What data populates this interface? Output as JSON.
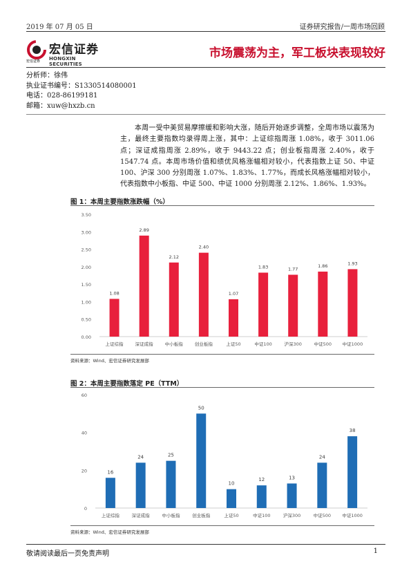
{
  "header": {
    "date": "2019 年 07 月 05 日",
    "series": "证券研究报告/一周市场回顾"
  },
  "logo": {
    "cn": "宏信证券",
    "sub_cn": "宏信证券",
    "en": "HONGXIN SECURITIES"
  },
  "title": "市场震荡为主，军工板块表现较好",
  "analyst": {
    "name_line": "分析师：徐伟",
    "cert_line": "执业证书编号：S1330514080001",
    "phone_line": "电话：028-86199181",
    "email_line": "邮箱：xuw@hxzb.cn"
  },
  "body": "本周一受中美贸易摩擦缓和影响大涨，随后开始逐步调整，全周市场以震荡为主，最终主要指数均录得周上涨，其中：上证综指周涨 1.08%，收于 3011.06 点；深证成指周涨 2.89%，收于 9443.22 点；创业板指周涨 2.40%，收于 1547.74 点。本周市场价值和绩优风格涨幅相对较小，代表指数上证 50、中证 100、沪深 300 分别周涨 1.07%、1.83%、1.77%，而成长风格涨幅相对较小，代表指数中小板指、中证 500、中证 1000 分别周涨 2.12%、1.86%、1.93%。",
  "figures": [
    {
      "title": "图 1：本周主要指数涨跌幅（%）",
      "source": "资料来源：Wind、宏信证券研究发展部"
    },
    {
      "title": "图 2：本周主要指数落定 PE（TTM）",
      "source": "资料来源：Wind、宏信证券研究发展部"
    }
  ],
  "chart_data": [
    {
      "type": "bar",
      "categories": [
        "上证综指",
        "深证成指",
        "中小板指",
        "创业板指",
        "上证50",
        "中证100",
        "沪深300",
        "中证500",
        "中证1000"
      ],
      "values": [
        1.08,
        2.89,
        2.12,
        2.4,
        1.07,
        1.83,
        1.77,
        1.86,
        1.93
      ],
      "labels": [
        "1.08",
        "2.89",
        "2.12",
        "2.40",
        "1.07",
        "1.83",
        "1.77",
        "1.86",
        "1.93"
      ],
      "yticks": [
        "0.00",
        "0.50",
        "1.00",
        "1.50",
        "2.00",
        "2.50",
        "3.00",
        "3.50"
      ],
      "ylim": [
        0,
        3.5
      ],
      "grid": false,
      "color": "#e8203c"
    },
    {
      "type": "bar",
      "categories": [
        "上证综指",
        "深证成指",
        "中小板指",
        "创业板指",
        "上证50",
        "中证100",
        "沪深300",
        "中证500",
        "中证1000"
      ],
      "values": [
        16,
        24,
        25,
        50,
        10,
        12,
        13,
        24,
        38
      ],
      "labels": [
        "16",
        "24",
        "25",
        "50",
        "10",
        "12",
        "13",
        "24",
        "38"
      ],
      "yticks": [
        "0",
        "20",
        "40",
        "60"
      ],
      "ylim": [
        0,
        60
      ],
      "grid": false,
      "color": "#1f6db5"
    }
  ],
  "footer": {
    "disclaimer": "敬请阅读最后一页免责声明",
    "page": "1"
  }
}
